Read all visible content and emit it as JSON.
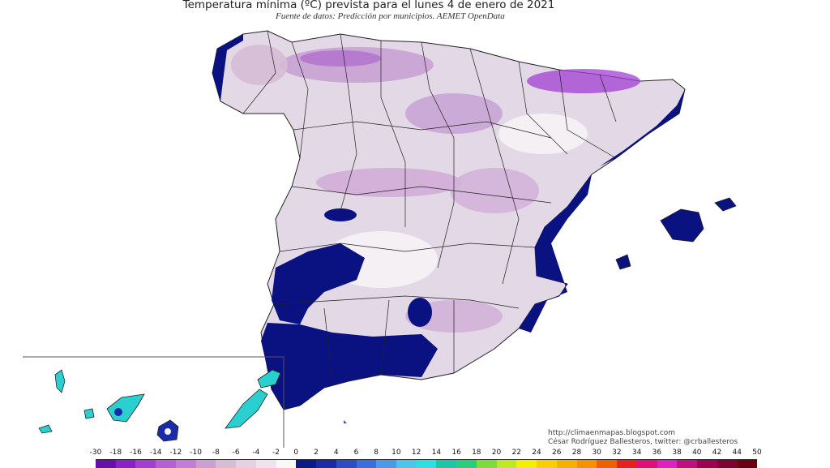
{
  "title": "Temperatura mínima (ºC) prevista para el lunes 4 de enero de 2021",
  "subtitle": "Fuente de datos: Predicción por municipios. AEMET OpenData",
  "credits": {
    "url": "http://climaenmapas.blogspot.com",
    "author": "César Rodríguez Ballesteros, twitter: @crballesteros"
  },
  "legend": {
    "unit": "ºC",
    "ticks": [
      "-30",
      "-18",
      "-16",
      "-14",
      "-12",
      "-10",
      "-8",
      "-6",
      "-4",
      "-2",
      "0",
      "2",
      "4",
      "6",
      "8",
      "10",
      "12",
      "14",
      "16",
      "18",
      "20",
      "22",
      "24",
      "26",
      "28",
      "30",
      "32",
      "34",
      "36",
      "38",
      "40",
      "42",
      "44",
      "50"
    ],
    "colors": [
      "#6a0dad",
      "#8b1fc8",
      "#a23fd1",
      "#b55fd6",
      "#c27ed6",
      "#caa0d0",
      "#d6bcd6",
      "#e2d2e2",
      "#eee4ee",
      "#f8f8f8",
      "#0a1a8a",
      "#1a2aa8",
      "#2a4ec6",
      "#3a6ee0",
      "#4a9aea",
      "#4ac6ee",
      "#2ae0e0",
      "#1ac8a8",
      "#26d07a",
      "#7add3a",
      "#c0ea20",
      "#f4f000",
      "#f8d000",
      "#f8b000",
      "#f89000",
      "#f06000",
      "#e82020",
      "#e0107a",
      "#e020c0",
      "#c01080",
      "#a00050",
      "#800030",
      "#6a0010"
    ]
  },
  "map": {
    "colors": {
      "coast_warm": "#0a1180",
      "cold_light": "#e3d8e6",
      "cold_mid": "#d6bcd6",
      "cold_strong": "#c49bd2",
      "cold_extreme": "#a23fd1",
      "near_zero": "#f4f0f4",
      "canary_warm": "#2ad0d0",
      "border": "#222222"
    }
  }
}
